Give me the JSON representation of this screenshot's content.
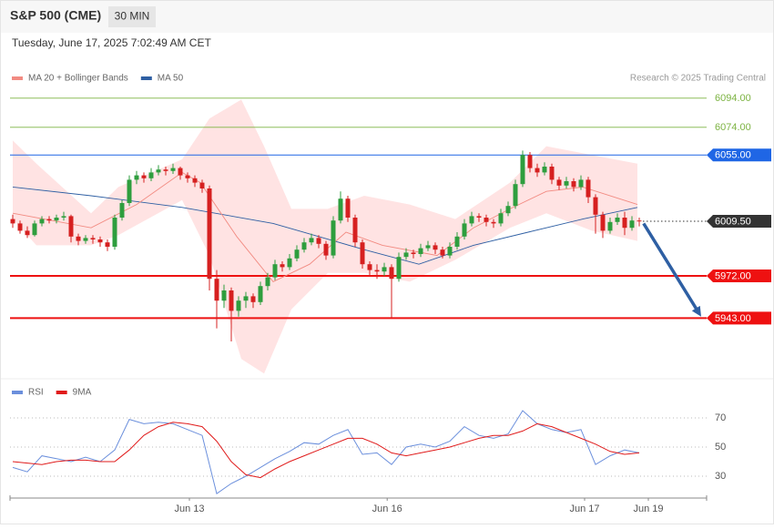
{
  "header": {
    "title": "S&P 500 (CME)",
    "interval": "30 MIN",
    "timestamp": "Tuesday, June 17, 2025 7:02:49 AM CET",
    "credit": "Research © 2025 Trading Central"
  },
  "chart_data": [
    {
      "type": "candlestick",
      "xlim": [
        -0.375,
        95.25
      ],
      "ylim": [
        5902,
        6102
      ],
      "up_color": "#2e9e3e",
      "down_color": "#d62020",
      "candles": [
        [
          6011,
          6014,
          6005,
          6008
        ],
        [
          6008,
          6010,
          6001,
          6003
        ],
        [
          6003,
          6006,
          5998,
          6000
        ],
        [
          6000,
          6010,
          5999,
          6008
        ],
        [
          6008,
          6013,
          6006,
          6011
        ],
        [
          6011,
          6013,
          6008,
          6010
        ],
        [
          6010,
          6014,
          6008,
          6012
        ],
        [
          6012,
          6016,
          6010,
          6013
        ],
        [
          6013,
          6014,
          5995,
          5999
        ],
        [
          5999,
          6001,
          5993,
          5996
        ],
        [
          5996,
          6000,
          5994,
          5998
        ],
        [
          5998,
          6000,
          5994,
          5997
        ],
        [
          5997,
          5999,
          5992,
          5995
        ],
        [
          5995,
          5997,
          5989,
          5992
        ],
        [
          5992,
          6014,
          5990,
          6012
        ],
        [
          6012,
          6024,
          6010,
          6022
        ],
        [
          6022,
          6041,
          6020,
          6038
        ],
        [
          6038,
          6044,
          6035,
          6041
        ],
        [
          6041,
          6043,
          6036,
          6039
        ],
        [
          6039,
          6046,
          6037,
          6043
        ],
        [
          6043,
          6048,
          6041,
          6045
        ],
        [
          6045,
          6047,
          6041,
          6044
        ],
        [
          6044,
          6049,
          6042,
          6046
        ],
        [
          6046,
          6047,
          6038,
          6041
        ],
        [
          6041,
          6043,
          6036,
          6039
        ],
        [
          6039,
          6041,
          6033,
          6036
        ],
        [
          6036,
          6038,
          6029,
          6032
        ],
        [
          6032,
          6034,
          5962,
          5970
        ],
        [
          5970,
          5976,
          5936,
          5955
        ],
        [
          5955,
          5966,
          5950,
          5962
        ],
        [
          5962,
          5964,
          5927,
          5948
        ],
        [
          5948,
          5958,
          5944,
          5955
        ],
        [
          5955,
          5961,
          5950,
          5958
        ],
        [
          5958,
          5960,
          5950,
          5954
        ],
        [
          5954,
          5968,
          5952,
          5965
        ],
        [
          5965,
          5974,
          5962,
          5971
        ],
        [
          5971,
          5983,
          5969,
          5980
        ],
        [
          5980,
          5982,
          5975,
          5978
        ],
        [
          5978,
          5987,
          5976,
          5984
        ],
        [
          5984,
          5993,
          5982,
          5990
        ],
        [
          5990,
          5998,
          5988,
          5995
        ],
        [
          5995,
          6001,
          5993,
          5998
        ],
        [
          5998,
          6000,
          5991,
          5994
        ],
        [
          5994,
          5996,
          5983,
          5986
        ],
        [
          5986,
          6013,
          5984,
          6010
        ],
        [
          6010,
          6030,
          6008,
          6025
        ],
        [
          6025,
          6027,
          6009,
          6012
        ],
        [
          6012,
          6014,
          5992,
          5995
        ],
        [
          5995,
          5997,
          5977,
          5980
        ],
        [
          5980,
          5982,
          5972,
          5976
        ],
        [
          5976,
          5980,
          5970,
          5975
        ],
        [
          5975,
          5981,
          5972,
          5978
        ],
        [
          5978,
          5980,
          5943,
          5970
        ],
        [
          5970,
          5988,
          5968,
          5985
        ],
        [
          5985,
          5991,
          5983,
          5988
        ],
        [
          5988,
          5990,
          5984,
          5987
        ],
        [
          5987,
          5994,
          5985,
          5991
        ],
        [
          5991,
          5996,
          5989,
          5993
        ],
        [
          5993,
          5995,
          5987,
          5990
        ],
        [
          5990,
          5992,
          5984,
          5986
        ],
        [
          5986,
          5995,
          5984,
          5992
        ],
        [
          5992,
          6002,
          5990,
          5999
        ],
        [
          5999,
          6011,
          5997,
          6008
        ],
        [
          6008,
          6016,
          6006,
          6013
        ],
        [
          6013,
          6015,
          6009,
          6012
        ],
        [
          6012,
          6014,
          6006,
          6009
        ],
        [
          6009,
          6011,
          6005,
          6008
        ],
        [
          6008,
          6018,
          6006,
          6015
        ],
        [
          6015,
          6023,
          6013,
          6020
        ],
        [
          6020,
          6038,
          6018,
          6035
        ],
        [
          6035,
          6058,
          6033,
          6055
        ],
        [
          6055,
          6057,
          6043,
          6046
        ],
        [
          6046,
          6049,
          6040,
          6043
        ],
        [
          6043,
          6050,
          6041,
          6047
        ],
        [
          6047,
          6049,
          6035,
          6038
        ],
        [
          6038,
          6040,
          6031,
          6034
        ],
        [
          6034,
          6040,
          6032,
          6037
        ],
        [
          6037,
          6039,
          6030,
          6033
        ],
        [
          6033,
          6041,
          6031,
          6038
        ],
        [
          6038,
          6040,
          6022,
          6026
        ],
        [
          6026,
          6028,
          6001,
          6014
        ],
        [
          6014,
          6016,
          5998,
          6003
        ],
        [
          6003,
          6012,
          6001,
          6009
        ],
        [
          6009,
          6015,
          6007,
          6012
        ],
        [
          6012,
          6016,
          6000,
          6005
        ],
        [
          6005,
          6013,
          6003,
          6010
        ],
        [
          6010,
          6012,
          6006,
          6009.5
        ]
      ],
      "ma20": {
        "name": "MA 20 + Bollinger Bands",
        "color": "#f28b82",
        "x": [
          0,
          10.75,
          17,
          23.25,
          25.75,
          30.75,
          35.75,
          40.75,
          45.75,
          50.75,
          58.25,
          63.25,
          68.25,
          73.25,
          78.25,
          85.75
        ],
        "values": [
          6015,
          6005,
          6021,
          6043,
          6036,
          5999,
          5968,
          5980,
          6002,
          5993,
          5986,
          6005,
          6018,
          6030,
          6033,
          6021
        ]
      },
      "ma50": {
        "name": "MA 50",
        "color": "#2e5fa3",
        "x": [
          0,
          10.75,
          23.25,
          35.75,
          42,
          48.25,
          55.75,
          63.25,
          70.75,
          78.25,
          85.75
        ],
        "values": [
          6033,
          6027,
          6019,
          6008,
          5999,
          5990,
          5980,
          5993,
          6002,
          6011,
          6019
        ]
      },
      "bollinger": {
        "color": "#ffdcdc",
        "x": [
          0,
          3.25,
          10.75,
          14.5,
          23.25,
          27,
          31.375,
          34.5,
          38.25,
          43.25,
          48.25,
          54.5,
          60.75,
          68.25,
          73.25,
          79.5,
          85.75
        ],
        "upper": [
          6065,
          6049,
          6015,
          6033,
          6052,
          6080,
          6093,
          6061,
          6018,
          6018,
          6027,
          6021,
          6011,
          6036,
          6061,
          6055,
          6049
        ],
        "lower": [
          6011,
          5993,
          5993,
          6000,
          6024,
          5986,
          5915,
          5905,
          5949,
          5974,
          5974,
          5968,
          5983,
          6005,
          6015,
          6003,
          5996
        ]
      },
      "levels": [
        {
          "value": 6094,
          "label": "6094.00",
          "color": "#7cb342",
          "style": "solid",
          "width": 0.8,
          "boxed": false
        },
        {
          "value": 6074,
          "label": "6074.00",
          "color": "#7cb342",
          "style": "solid",
          "width": 0.8,
          "boxed": false
        },
        {
          "value": 6055,
          "label": "6055.00",
          "color": "#1f66e5",
          "style": "solid",
          "width": 1,
          "boxed": true
        },
        {
          "value": 6009.5,
          "label": "6009.50",
          "color": "#333333",
          "style": "dotted",
          "width": 1,
          "boxed": true
        },
        {
          "value": 5972,
          "label": "5972.00",
          "color": "#ee1111",
          "style": "solid",
          "width": 2,
          "boxed": true
        },
        {
          "value": 5943,
          "label": "5943.00",
          "color": "#ee1111",
          "style": "solid",
          "width": 2,
          "boxed": true
        }
      ],
      "arrow": {
        "from": [
          86.6,
          6008
        ],
        "to": [
          94.5,
          5944
        ],
        "color": "#2e5fa3"
      }
    },
    {
      "type": "rsi",
      "xlim": [
        -0.375,
        95.25
      ],
      "ylim": [
        16,
        79
      ],
      "yticks": [
        30,
        50,
        70
      ],
      "grid": true,
      "xticks": [
        {
          "value": 24.25,
          "label": "Jun 13"
        },
        {
          "value": 51.4,
          "label": "Jun 16"
        },
        {
          "value": 78.5,
          "label": "Jun 17"
        },
        {
          "value": 87.25,
          "label": "Jun 19"
        }
      ],
      "x": [
        0,
        2,
        4,
        6,
        8,
        10,
        12,
        14,
        16,
        18,
        20,
        22,
        24,
        26,
        28,
        30,
        32,
        34,
        36,
        38,
        40,
        42,
        44,
        46,
        48,
        50,
        52,
        54,
        56,
        58,
        60,
        62,
        64,
        66,
        68,
        70,
        72,
        74,
        76,
        78,
        80,
        82,
        84,
        86
      ],
      "series": [
        {
          "name": "RSI",
          "color": "#6b8fdc",
          "values": [
            36,
            33,
            44,
            42,
            40,
            43,
            40,
            48,
            69,
            66,
            67,
            66,
            62,
            58,
            18,
            25,
            30,
            36,
            42,
            47,
            53,
            52,
            58,
            62,
            45,
            46,
            38,
            50,
            52,
            50,
            54,
            64,
            58,
            56,
            59,
            75,
            66,
            62,
            60,
            62,
            38,
            44,
            48,
            46
          ]
        },
        {
          "name": "9MA",
          "color": "#e01b1b",
          "values": [
            40,
            39,
            38,
            40,
            41,
            41,
            40,
            40,
            48,
            58,
            64,
            67,
            66,
            64,
            54,
            40,
            31,
            29,
            35,
            40,
            44,
            48,
            52,
            56,
            56,
            52,
            46,
            44,
            46,
            48,
            50,
            53,
            56,
            58,
            58,
            61,
            66,
            64,
            60,
            56,
            52,
            47,
            45,
            46
          ]
        }
      ]
    }
  ]
}
